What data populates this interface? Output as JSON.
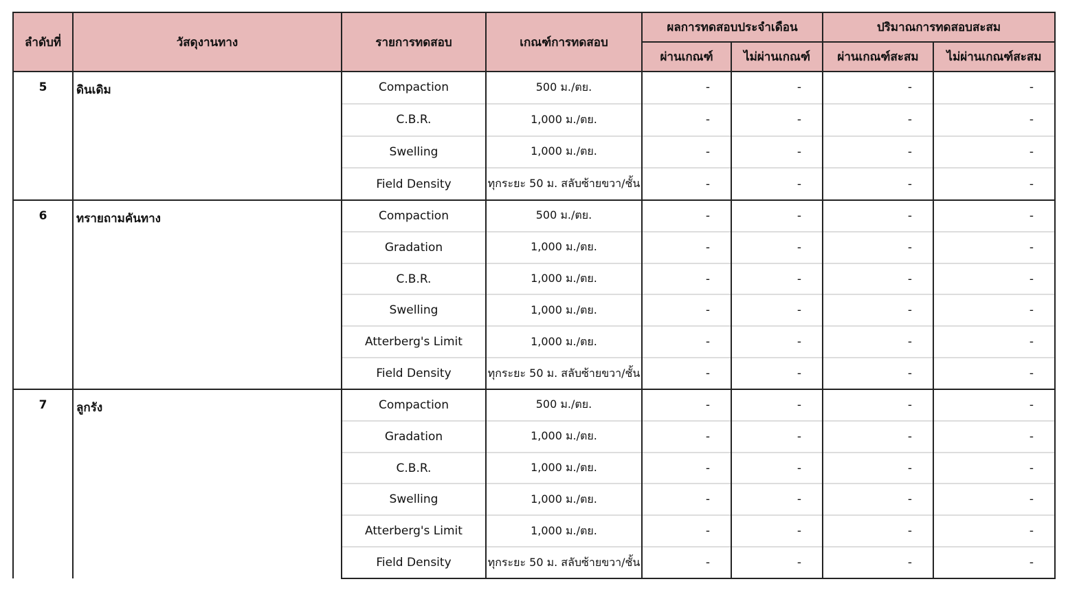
{
  "table": {
    "headers": {
      "no": "ลำดับที่",
      "material": "วัสดุงานทาง",
      "test": "รายการทดสอบ",
      "criteria": "เกณฑ์การทดสอบ",
      "monthly": "ผลการทดสอบประจำเดือน",
      "cumulative": "ปริมาณการทดสอบสะสม",
      "pass": "ผ่านเกณฑ์",
      "fail": "ไม่ผ่านเกณฑ์",
      "pass_cum": "ผ่านเกณฑ์สะสม",
      "fail_cum": "ไม่ผ่านเกณฑ์สะสม"
    },
    "groups": [
      {
        "no": "5",
        "material": "ดินเดิม",
        "tests": [
          {
            "name": "Compaction",
            "criteria": "500 ม./ตย.",
            "results": [
              "-",
              "-",
              "-",
              "-"
            ]
          },
          {
            "name": "C.B.R.",
            "criteria": "1,000 ม./ตย.",
            "results": [
              "-",
              "-",
              "-",
              "-"
            ]
          },
          {
            "name": "Swelling",
            "criteria": "1,000 ม./ตย.",
            "results": [
              "-",
              "-",
              "-",
              "-"
            ]
          },
          {
            "name": "Field Density",
            "criteria": "ทุกระยะ 50 ม. สลับซ้ายขวา/ชั้น",
            "results": [
              "-",
              "-",
              "-",
              "-"
            ]
          }
        ]
      },
      {
        "no": "6",
        "material": "ทรายถามคันทาง",
        "tests": [
          {
            "name": "Compaction",
            "criteria": "500 ม./ตย.",
            "results": [
              "-",
              "-",
              "-",
              "-"
            ]
          },
          {
            "name": "Gradation",
            "criteria": "1,000 ม./ตย.",
            "results": [
              "-",
              "-",
              "-",
              "-"
            ]
          },
          {
            "name": "C.B.R.",
            "criteria": "1,000 ม./ตย.",
            "results": [
              "-",
              "-",
              "-",
              "-"
            ]
          },
          {
            "name": "Swelling",
            "criteria": "1,000 ม./ตย.",
            "results": [
              "-",
              "-",
              "-",
              "-"
            ]
          },
          {
            "name": "Atterberg's Limit",
            "criteria": "1,000 ม./ตย.",
            "results": [
              "-",
              "-",
              "-",
              "-"
            ]
          },
          {
            "name": "Field Density",
            "criteria": "ทุกระยะ 50 ม. สลับซ้ายขวา/ชั้น",
            "results": [
              "-",
              "-",
              "-",
              "-"
            ]
          }
        ]
      },
      {
        "no": "7",
        "material": "ลูกรัง",
        "tests": [
          {
            "name": "Compaction",
            "criteria": "500 ม./ตย.",
            "results": [
              "-",
              "-",
              "-",
              "-"
            ]
          },
          {
            "name": "Gradation",
            "criteria": "1,000 ม./ตย.",
            "results": [
              "-",
              "-",
              "-",
              "-"
            ]
          },
          {
            "name": "C.B.R.",
            "criteria": "1,000 ม./ตย.",
            "results": [
              "-",
              "-",
              "-",
              "-"
            ]
          },
          {
            "name": "Swelling",
            "criteria": "1,000 ม./ตย.",
            "results": [
              "-",
              "-",
              "-",
              "-"
            ]
          },
          {
            "name": "Atterberg's Limit",
            "criteria": "1,000 ม./ตย.",
            "results": [
              "-",
              "-",
              "-",
              "-"
            ]
          },
          {
            "name": "Field Density",
            "criteria": "ทุกระยะ 50 ม. สลับซ้ายขวา/ชั้น",
            "results": [
              "-",
              "-",
              "-",
              "-"
            ]
          }
        ]
      }
    ]
  }
}
